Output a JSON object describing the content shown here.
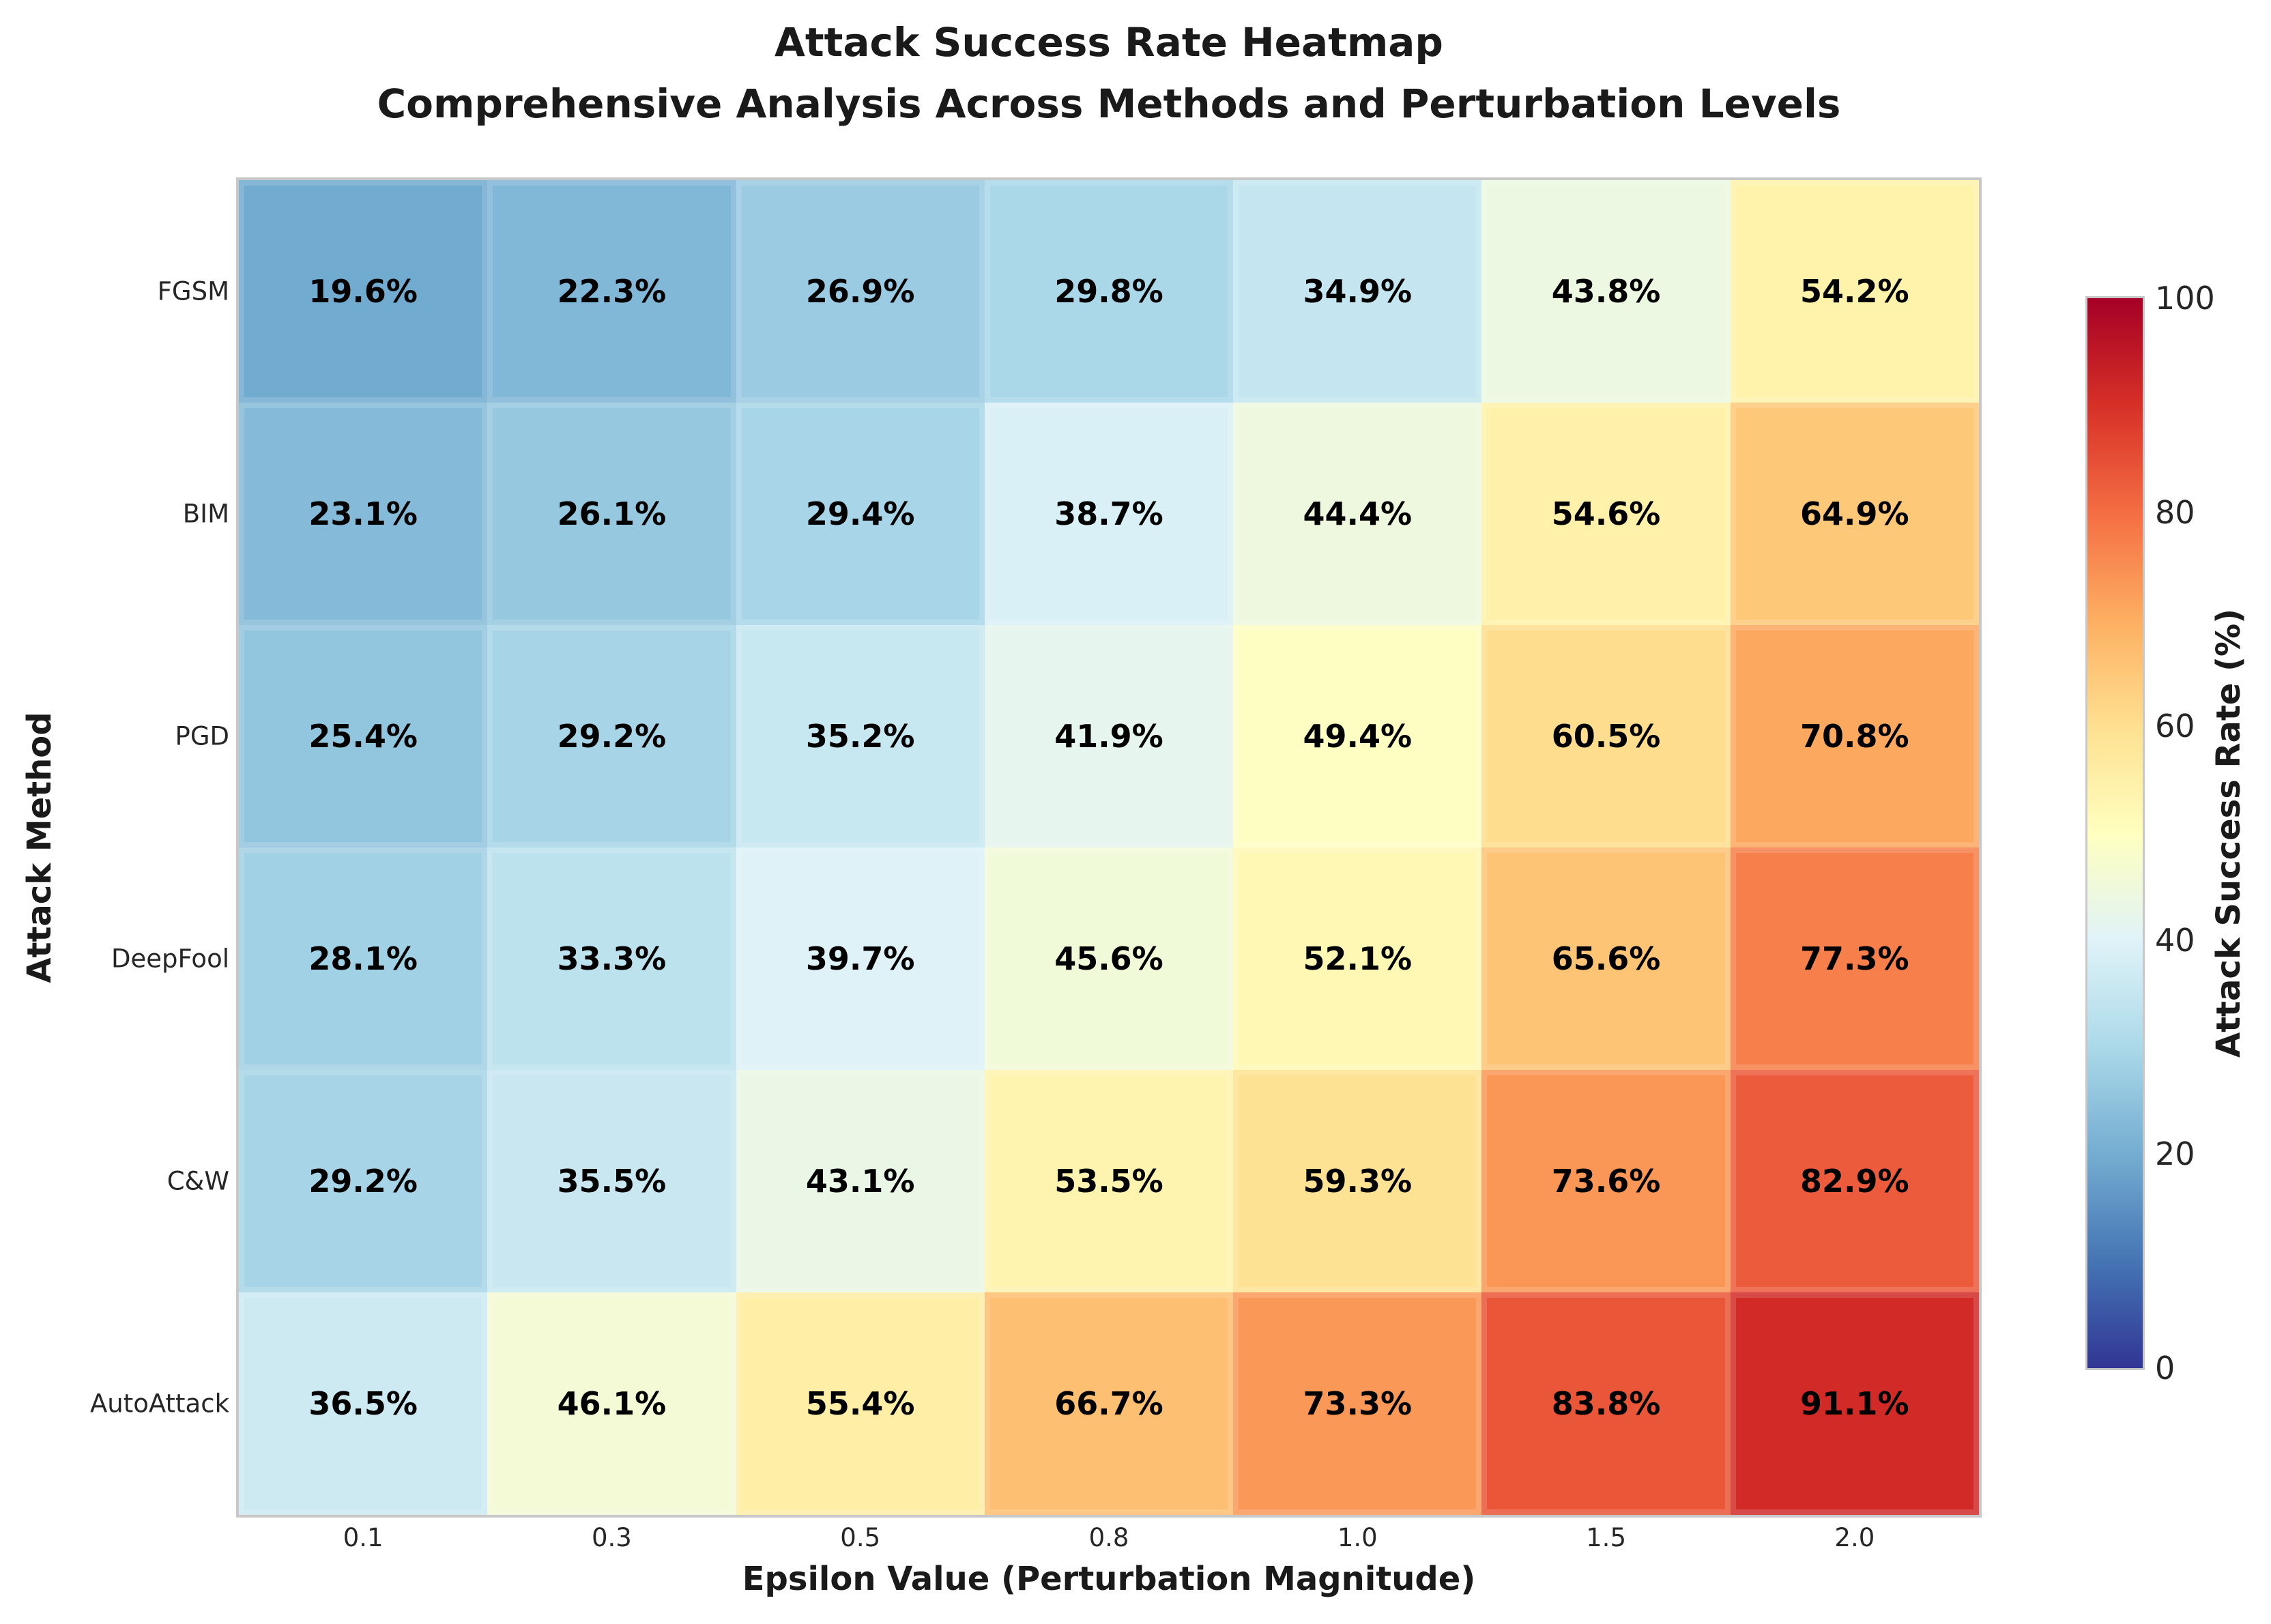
{
  "figure": {
    "background": "#ffffff",
    "frame_color": "#c8c8c8",
    "title_color": "#1a1a1a",
    "tick_color": "#262626",
    "annotation_color": "#000000"
  },
  "title": {
    "line1": "Attack Success Rate Heatmap",
    "line2": "Comprehensive Analysis Across Methods and Perturbation Levels"
  },
  "chart_data": {
    "type": "heatmap",
    "title": "Attack Success Rate Heatmap",
    "subtitle": "Comprehensive Analysis Across Methods and Perturbation Levels",
    "xlabel": "Epsilon Value (Perturbation Magnitude)",
    "ylabel": "Attack Method",
    "x_tick_labels": [
      "0.1",
      "0.3",
      "0.5",
      "0.8",
      "1.0",
      "1.5",
      "2.0"
    ],
    "y_tick_labels": [
      "FGSM",
      "BIM",
      "PGD",
      "DeepFool",
      "C&W",
      "AutoAttack"
    ],
    "series": [
      {
        "name": "FGSM",
        "values": [
          19.6,
          22.3,
          26.9,
          29.8,
          34.9,
          43.8,
          54.2
        ]
      },
      {
        "name": "BIM",
        "values": [
          23.1,
          26.1,
          29.4,
          38.7,
          44.4,
          54.6,
          64.9
        ]
      },
      {
        "name": "PGD",
        "values": [
          25.4,
          29.2,
          35.2,
          41.9,
          49.4,
          60.5,
          70.8
        ]
      },
      {
        "name": "DeepFool",
        "values": [
          28.1,
          33.3,
          39.7,
          45.6,
          52.1,
          65.6,
          77.3
        ]
      },
      {
        "name": "C&W",
        "values": [
          29.2,
          35.5,
          43.1,
          53.5,
          59.3,
          73.6,
          82.9
        ]
      },
      {
        "name": "AutoAttack",
        "values": [
          36.5,
          46.1,
          55.4,
          66.7,
          73.3,
          83.8,
          91.1
        ]
      }
    ],
    "cell_label_suffix": "%",
    "vmin": 0,
    "vmax": 100,
    "grid": false,
    "legend_position": "none",
    "colorbar": {
      "label": "Attack Success Rate (%)",
      "ticks": [
        0,
        20,
        40,
        60,
        80,
        100
      ],
      "position": "right"
    },
    "colormap": {
      "name": "RdYlBu_r",
      "anchors": [
        "#313695",
        "#4575b4",
        "#74add1",
        "#abd9e9",
        "#e0f3f8",
        "#ffffbf",
        "#fee090",
        "#fdae61",
        "#f46d43",
        "#d73027",
        "#a50026"
      ]
    }
  }
}
